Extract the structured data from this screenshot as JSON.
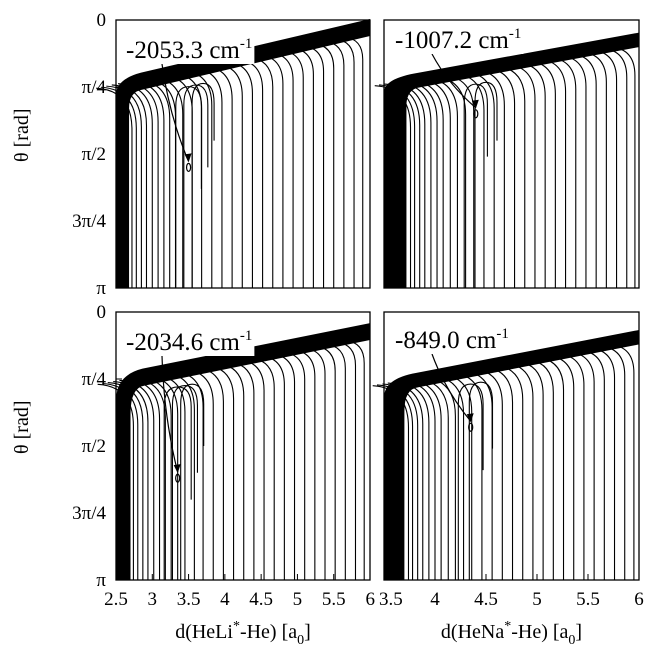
{
  "chart_data": [
    {
      "type": "contour",
      "panel": "top-left",
      "annotation": "-2053.3 cm",
      "annotation_sup": "-1",
      "minimum": {
        "x": 3.5,
        "y": 0.55
      },
      "xlim": [
        2.5,
        6.0
      ],
      "ylim": [
        0,
        1
      ],
      "xticks": [],
      "yticks": [
        "0",
        "π/4",
        "π/2",
        "3π/4",
        "π"
      ],
      "ylabel": "θ [rad]",
      "xlabel": "",
      "wall": {
        "x_left": 2.5,
        "x_right": 2.68,
        "y_corner": 0.28,
        "top_left_y": 0.235,
        "top_right_y": 0.035,
        "thickness": 0.07
      },
      "contour_x": [
        2.72,
        2.78,
        2.85,
        2.92,
        3.0,
        3.08,
        3.16,
        3.24,
        3.32,
        3.42,
        3.55,
        3.68,
        3.82,
        3.96,
        4.1,
        4.24,
        4.38,
        4.52,
        4.66,
        4.8,
        4.94,
        5.08,
        5.22,
        5.36,
        5.5,
        5.64,
        5.78,
        5.9
      ],
      "loops": [
        {
          "x": 3.5,
          "depth": 0.48
        },
        {
          "x": 3.6,
          "depth": 0.4
        },
        {
          "x": 3.7,
          "depth": 0.3
        }
      ]
    },
    {
      "type": "contour",
      "panel": "top-right",
      "annotation": "-1007.2 cm",
      "annotation_sup": "-1",
      "minimum": {
        "x": 4.4,
        "y": 0.35
      },
      "xlim": [
        3.5,
        6.0
      ],
      "ylim": [
        0,
        1
      ],
      "xticks": [],
      "yticks": [],
      "ylabel": "",
      "xlabel": "",
      "wall": {
        "x_left": 3.5,
        "x_right": 3.72,
        "y_corner": 0.27,
        "top_left_y": 0.23,
        "top_right_y": 0.08,
        "thickness": 0.06
      },
      "contour_x": [
        3.76,
        3.8,
        3.85,
        3.9,
        3.96,
        4.02,
        4.08,
        4.15,
        4.22,
        4.3,
        4.38,
        4.48,
        4.58,
        4.68,
        4.78,
        4.88,
        4.98,
        5.08,
        5.18,
        5.28,
        5.38,
        5.48,
        5.58,
        5.68,
        5.78,
        5.88,
        5.96
      ],
      "loops": [
        {
          "x": 4.4,
          "depth": 0.36
        },
        {
          "x": 4.5,
          "depth": 0.3
        }
      ]
    },
    {
      "type": "contour",
      "panel": "bottom-left",
      "annotation": "-2034.6 cm",
      "annotation_sup": "-1",
      "minimum": {
        "x": 3.35,
        "y": 0.62
      },
      "xlim": [
        2.5,
        6.0
      ],
      "ylim": [
        0,
        1
      ],
      "xticks": [
        "2.5",
        "3",
        "3.5",
        "4",
        "4.5",
        "5",
        "5.5",
        "6"
      ],
      "yticks": [
        "0",
        "π/4",
        "π/2",
        "3π/4",
        "π"
      ],
      "ylabel": "θ [rad]",
      "xlabel": "d(HeLi",
      "xlabel_sup": "*",
      "xlabel_rest": "-He) [a",
      "xlabel_sub": "0",
      "xlabel_end": "]",
      "wall": {
        "x_left": 2.5,
        "x_right": 2.7,
        "y_corner": 0.33,
        "top_left_y": 0.25,
        "top_right_y": 0.08,
        "thickness": 0.07
      },
      "contour_x": [
        2.74,
        2.8,
        2.87,
        2.94,
        3.02,
        3.1,
        3.18,
        3.26,
        3.35,
        3.45,
        3.58,
        3.7,
        3.84,
        3.98,
        4.12,
        4.26,
        4.4,
        4.54,
        4.68,
        4.82,
        4.96,
        5.1,
        5.24,
        5.38,
        5.52,
        5.66,
        5.8,
        5.92
      ],
      "loops": [
        {
          "x": 3.35,
          "depth": 0.55
        },
        {
          "x": 3.45,
          "depth": 0.45
        },
        {
          "x": 3.55,
          "depth": 0.35
        }
      ]
    },
    {
      "type": "contour",
      "panel": "bottom-right",
      "annotation": "-849.0 cm",
      "annotation_sup": "-1",
      "minimum": {
        "x": 4.35,
        "y": 0.43
      },
      "xlim": [
        3.5,
        6.0
      ],
      "ylim": [
        0,
        1
      ],
      "xticks": [
        "3.5",
        "4",
        "4.5",
        "5",
        "5.5",
        "6"
      ],
      "yticks": [],
      "ylabel": "",
      "xlabel": "d(HeNa",
      "xlabel_sup": "*",
      "xlabel_rest": "-He) [a",
      "xlabel_sub": "0",
      "xlabel_end": "]",
      "wall": {
        "x_left": 3.5,
        "x_right": 3.7,
        "y_corner": 0.32,
        "top_left_y": 0.26,
        "top_right_y": 0.1,
        "thickness": 0.06
      },
      "contour_x": [
        3.74,
        3.78,
        3.83,
        3.88,
        3.94,
        4.0,
        4.06,
        4.13,
        4.2,
        4.28,
        4.36,
        4.46,
        4.56,
        4.66,
        4.76,
        4.86,
        4.96,
        5.06,
        5.16,
        5.26,
        5.36,
        5.46,
        5.56,
        5.66,
        5.76,
        5.86,
        5.95
      ],
      "loops": [
        {
          "x": 4.35,
          "depth": 0.44
        },
        {
          "x": 4.45,
          "depth": 0.36
        }
      ]
    }
  ]
}
